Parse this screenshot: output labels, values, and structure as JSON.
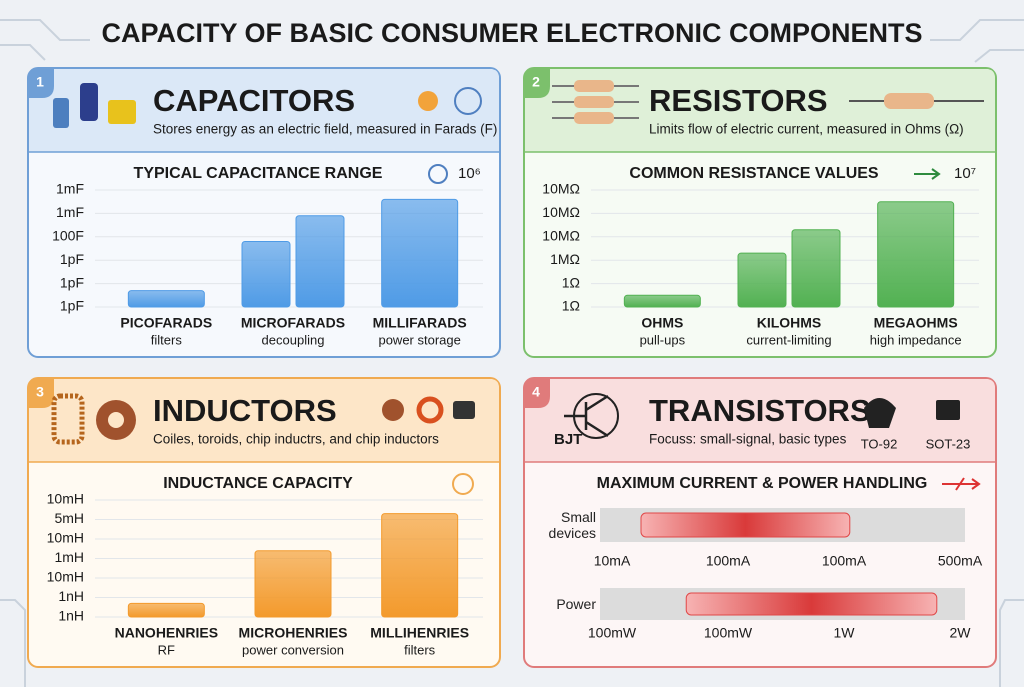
{
  "title": "CAPACITY OF BASIC CONSUMER ELECTRONIC COMPONENTS",
  "chart_data": [
    {
      "type": "bar",
      "number": "1",
      "heading": "CAPACITORS",
      "description": "Stores energy as an electric field, measured in Farads (F)",
      "chart_title": "TYPICAL CAPACITANCE RANGE",
      "note": "10⁶",
      "color": "#4f9be6",
      "categories": [
        "PICOFARADS",
        "MICROFARADS",
        "MILLIFARADS"
      ],
      "sublabels": [
        "filters",
        "decoupling",
        "power storage"
      ],
      "values": [
        [
          0.7
        ],
        [
          2.8,
          3.9
        ],
        [
          4.6
        ]
      ],
      "ylim": [
        0,
        5
      ],
      "yticks": [
        {
          "value": 0,
          "label": "1pF"
        },
        {
          "value": 1,
          "label": "1pF"
        },
        {
          "value": 2,
          "label": "1pF"
        },
        {
          "value": 3,
          "label": "100F"
        },
        {
          "value": 4,
          "label": "1mF"
        },
        {
          "value": 5,
          "label": "1mF"
        }
      ]
    },
    {
      "type": "bar",
      "number": "2",
      "heading": "RESISTORS",
      "description": "Limits flow of electric current, measured in Ohms (Ω)",
      "chart_title": "COMMON RESISTANCE VALUES",
      "note": "10⁷",
      "color": "#52b152",
      "categories": [
        "OHMS",
        "KILOHMS",
        "MEGAOHMS"
      ],
      "sublabels": [
        "pull-ups",
        "current-limiting",
        "high impedance"
      ],
      "values": [
        [
          0.5
        ],
        [
          2.3,
          3.3
        ],
        [
          4.5
        ]
      ],
      "ylim": [
        0,
        5
      ],
      "yticks": [
        {
          "value": 0,
          "label": "1Ω"
        },
        {
          "value": 1,
          "label": "1Ω"
        },
        {
          "value": 2,
          "label": "1MΩ"
        },
        {
          "value": 3,
          "label": "10MΩ"
        },
        {
          "value": 4,
          "label": "10MΩ"
        },
        {
          "value": 5,
          "label": "10MΩ"
        }
      ]
    },
    {
      "type": "bar",
      "number": "3",
      "heading": "INDUCTORS",
      "description": "Coiles, toroids, chip inductrs, and chip inductors",
      "chart_title": "INDUCTANCE CAPACITY",
      "color": "#f39a2c",
      "categories": [
        "NANOHENRIES",
        "MICROHENRIES",
        "MILLIHENRIES"
      ],
      "sublabels": [
        "RF",
        "power conversion",
        "filters"
      ],
      "values": [
        [
          0.7
        ],
        [
          3.4
        ],
        [
          5.3
        ]
      ],
      "ylim": [
        0,
        6
      ],
      "yticks": [
        {
          "value": 0,
          "label": "1nH"
        },
        {
          "value": 1,
          "label": "1nH"
        },
        {
          "value": 2,
          "label": "10mH"
        },
        {
          "value": 3,
          "label": "1mH"
        },
        {
          "value": 4,
          "label": "10mH"
        },
        {
          "value": 5,
          "label": "5mH"
        },
        {
          "value": 6,
          "label": "10mH"
        }
      ]
    },
    {
      "type": "range",
      "number": "4",
      "heading": "TRANSISTORS",
      "description": "Focuss: small-signal, basic types",
      "chart_title": "MAXIMUM CURRENT & POWER HANDLING",
      "icon_labels": [
        "BJT",
        "TO-92",
        "SOT-23"
      ],
      "color": "#e04848",
      "xlim": [
        0,
        3
      ],
      "rows": [
        {
          "name": "Small devices",
          "values": [
            0.25,
            2.05
          ],
          "xticks": [
            {
              "value": 0,
              "label": "10mA"
            },
            {
              "value": 1,
              "label": "100mA"
            },
            {
              "value": 2,
              "label": "100mA"
            },
            {
              "value": 3,
              "label": "500mA"
            }
          ]
        },
        {
          "name": "Power",
          "values": [
            0.64,
            2.8
          ],
          "xticks": [
            {
              "value": 0,
              "label": "100mW"
            },
            {
              "value": 1,
              "label": "100mW"
            },
            {
              "value": 2,
              "label": "1W"
            },
            {
              "value": 3,
              "label": "2W"
            }
          ]
        }
      ]
    }
  ]
}
